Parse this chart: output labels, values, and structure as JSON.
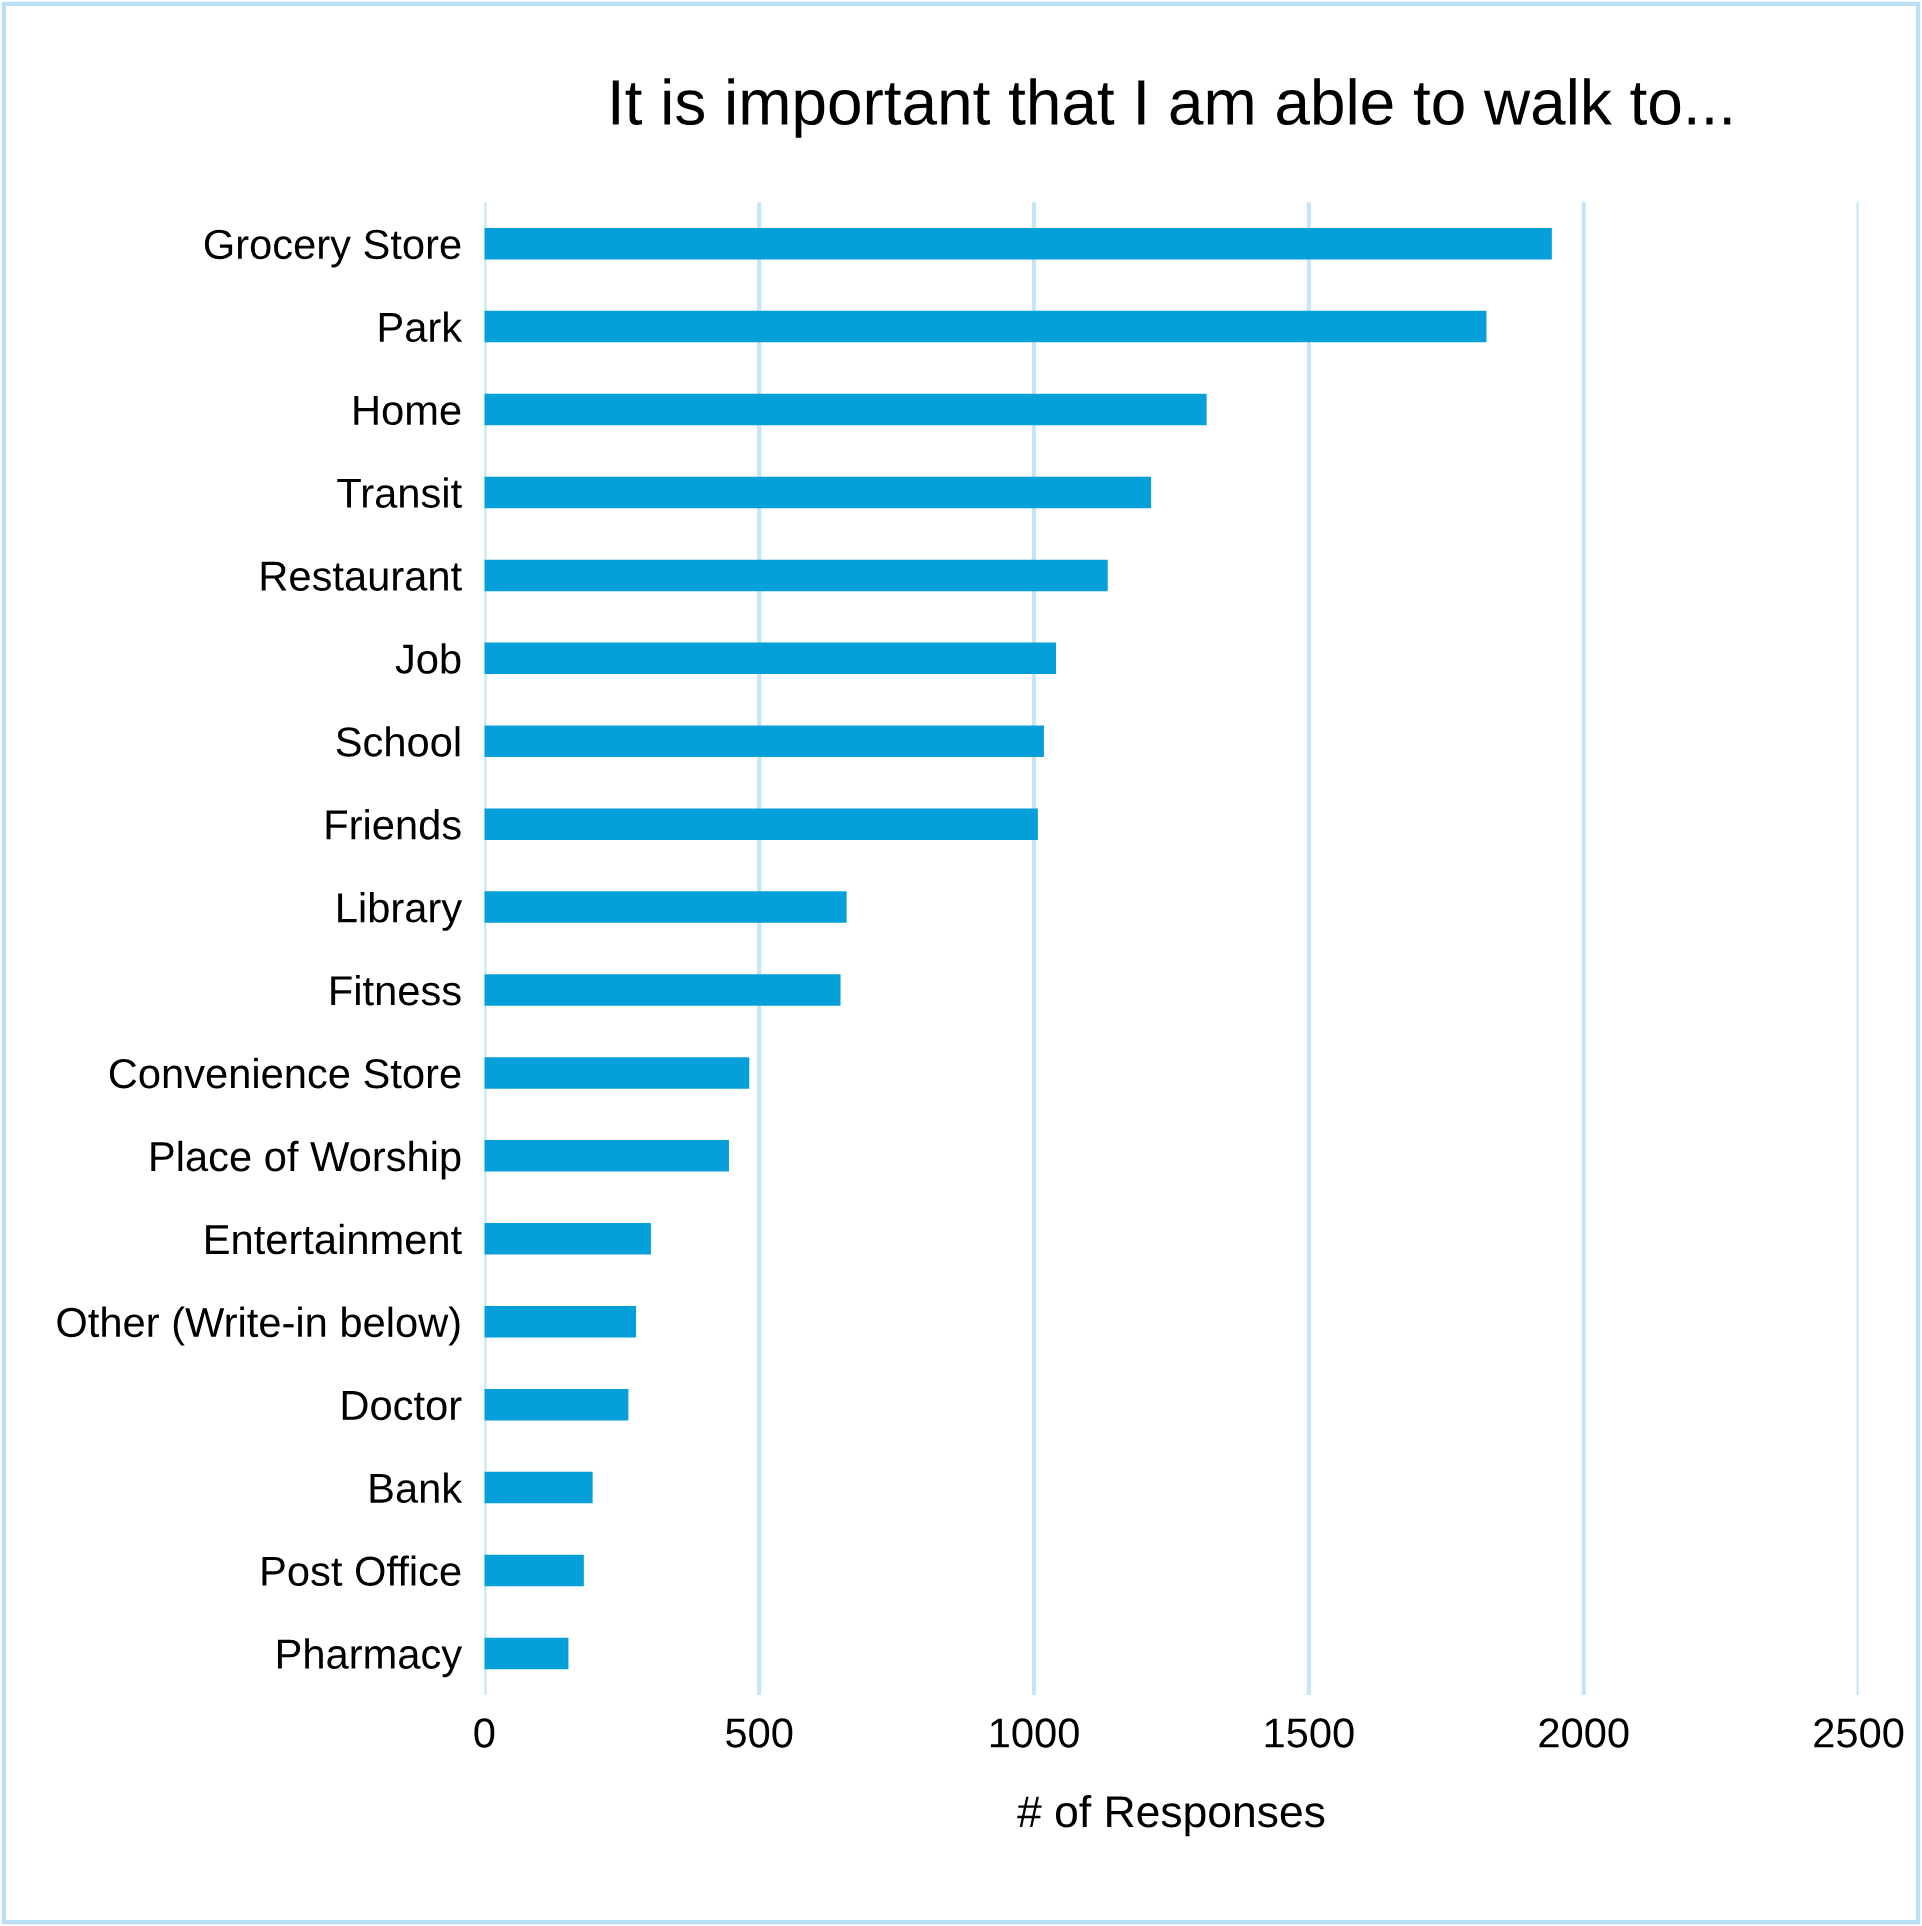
{
  "chart_data": {
    "type": "bar",
    "orientation": "horizontal",
    "title": "It is important that I am able to walk to...",
    "xlabel": "# of Responses",
    "categories": [
      "Grocery Store",
      "Park",
      "Home",
      "Transit",
      "Restaurant",
      "Job",
      "School",
      "Friends",
      "Library",
      "Fitness",
      "Convenience Store",
      "Place of Worship",
      "Entertainment",
      "Other (Write-in below)",
      "Doctor",
      "Bank",
      "Post Office",
      "Pharmacy"
    ],
    "values": [
      1942,
      1823,
      1314,
      1213,
      1134,
      1040,
      1018,
      1007,
      659,
      648,
      482,
      445,
      303,
      276,
      262,
      197,
      181,
      153
    ],
    "color": "#059fda",
    "xlim": [
      0,
      2500
    ],
    "xticks": [
      0,
      500,
      1000,
      1500,
      2000,
      2500
    ],
    "grid": "x",
    "legend": false
  }
}
